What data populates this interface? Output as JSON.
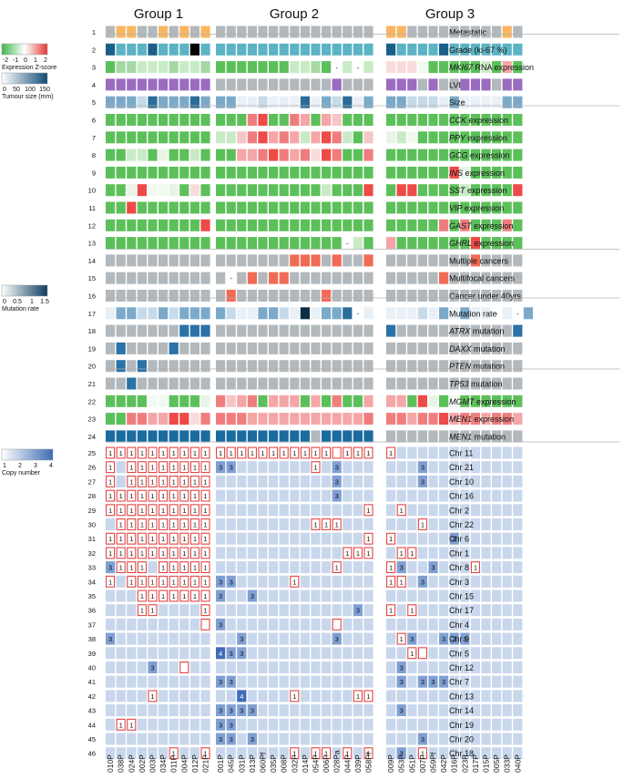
{
  "chart_data": {
    "type": "heatmap",
    "groups": [
      {
        "name": "Group 1",
        "samples": [
          "010P",
          "038P",
          "024P",
          "002P",
          "003P",
          "034P",
          "011P",
          "004P",
          "012P",
          "021P"
        ]
      },
      {
        "name": "Group 2",
        "samples": [
          "001P",
          "045P",
          "031P",
          "013P",
          "060Pf",
          "035P",
          "008P",
          "032P",
          "014P",
          "054P",
          "006P",
          "028Pa",
          "044P",
          "039P",
          "058Pf"
        ]
      },
      {
        "name": "Group 3",
        "samples": [
          "009P",
          "053P",
          "051P",
          "007P",
          "059Pf",
          "042P",
          "016P",
          "023P",
          "017P",
          "015P",
          "005P",
          "033P",
          "040P"
        ]
      }
    ],
    "feature_rows": [
      {
        "n": 1,
        "label": "Metastatic",
        "italic_gene": "",
        "colors": {
          "A": "#f9b661",
          "B": "#b2b8bc",
          "K": "#000000"
        },
        "cells": [
          "BAABBABABA",
          "BBBBBBBBBBBBBBB",
          "AABBBBBBBBBAB"
        ]
      },
      {
        "n": 2,
        "label": "Grade (ki-67 %)",
        "italic_gene": "",
        "colors": {
          "A": "#5cb3c4",
          "B": "#1a5f8a",
          "K": "#000000"
        },
        "cells": [
          "BAAABAAAKA",
          "AAAAAAAAAAAAAAA",
          "BAAAABAAAAAAA"
        ]
      },
      {
        "n": 3,
        "label": "RNA expression",
        "italic_gene": "MKI67",
        "colors": {},
        "cells": [
          "bCCaaaCaaC",
          "bbbbbbbaaCb-a-a",
          "hhhjbbbbbabeb"
        ]
      },
      {
        "n": 4,
        "label": "LVI",
        "italic_gene": "",
        "colors": {
          "A": "#9b6bc0",
          "B": "#b2b8bc"
        },
        "cells": [
          "AAAAAAAAAA",
          "BBBBBBBBBBBABBB",
          "AAABABBAAABAA"
        ]
      },
      {
        "n": 5,
        "label": "Size",
        "italic_gene": "",
        "colors": {
          "A": "#c6dbea",
          "B": "#7ba9c9",
          "C": "#2c6c97",
          "D": "#e9f0f6"
        },
        "cells": [
          "BBBACBBBCB",
          "BBDDADDDCDBACDB",
          "BBAAADBDDDDBB"
        ]
      },
      {
        "n": 6,
        "label": "expression",
        "italic_gene": "CCK",
        "colors": {},
        "cells": [
          "bbbbbbbbbb",
          "bbbfgbbfebedbbb",
          "bbbbbbbbbbbbb"
        ]
      },
      {
        "n": 7,
        "label": "expression",
        "italic_gene": "PPY",
        "colors": {},
        "cells": [
          "bbbbbbbbbb",
          "aadfgefeaegfabd",
          "cajbbbbbbbbbb"
        ]
      },
      {
        "n": 8,
        "label": "expression",
        "italic_gene": "GCG",
        "colors": {},
        "cells": [
          "bbaabcbbab",
          "bbeefgfefhgfbbf",
          "bbbbbbbbbbbbb"
        ]
      },
      {
        "n": 9,
        "label": "expression",
        "italic_gene": "INS",
        "colors": {},
        "cells": [
          "bbbbbbbbbb",
          "bbbbbbbbbbbbbbb",
          "bbbbbbgcbbbbb"
        ]
      },
      {
        "n": 10,
        "label": "expression",
        "italic_gene": "SST",
        "colors": {},
        "cells": [
          "bbcgjjcbhb",
          "bbbbbbbbbbabbbg",
          "bggbbbbabbbbg"
        ]
      },
      {
        "n": 11,
        "label": "expression",
        "italic_gene": "VIP",
        "colors": {},
        "cells": [
          "bbgbbbbbbb",
          "bbbbbbbbbbbbbbb",
          "bbbbbbbbbbbbb"
        ]
      },
      {
        "n": 12,
        "label": "expression",
        "italic_gene": "GAST",
        "colors": {},
        "cells": [
          "bbbbbbbbbg",
          "bbbbbbbbbbbbbbb",
          "bbbbbfbfbbbfb"
        ]
      },
      {
        "n": 13,
        "label": "expression",
        "italic_gene": "GHRL",
        "colors": {},
        "cells": [
          "bbbbbbbbbb",
          "bbbbbbbbbbbb-ab",
          "ebbbbbbbgbbbb"
        ]
      },
      {
        "n": 14,
        "label": "Multiple cancers",
        "italic_gene": "",
        "colors": {
          "A": "#f06b55",
          "B": "#b2b8bc"
        },
        "cells": [
          "BBBBBBBBBB",
          "BBBBBBBAAABABBA",
          "BBBBBBBBABBBB"
        ]
      },
      {
        "n": 15,
        "label": "Multifocal cancers",
        "italic_gene": "",
        "colors": {
          "A": "#f06b55",
          "B": "#b2b8bc"
        },
        "cells": [
          "BBBBBBBBBB",
          "B-BABAABBBBBBBB",
          "BBBBBABBBBBBB"
        ]
      },
      {
        "n": 16,
        "label": "Cancer under 40yrs",
        "italic_gene": "",
        "colors": {
          "A": "#f06b55",
          "B": "#b2b8bc"
        },
        "cells": [
          "BBBBBBBBBB",
          "BABBBBBBBBABBBB",
          "BBBBBBBBBBBBB"
        ]
      },
      {
        "n": 17,
        "label": "Mutation rate",
        "italic_gene": "",
        "colors": {
          "A": "#c6dbea",
          "B": "#7ba9c9",
          "C": "#2c6c97",
          "D": "#e9f0f6",
          "K": "#0b2d45"
        },
        "cells": [
          "DBBAABABBB",
          "BADDBBADKDBBC-D",
          "DDDADBDBDD-D-B"
        ]
      },
      {
        "n": 18,
        "label": "mutation",
        "italic_gene": "ATRX",
        "colors": {
          "A": "#2a72a8",
          "B": "#b2b8bc"
        },
        "cells": [
          "BBBBBBBAAA",
          "BBBBBBBBBBBBBBB",
          "ABBBBBBBBBBBA"
        ]
      },
      {
        "n": 19,
        "label": "mutation",
        "italic_gene": "DAXX",
        "colors": {
          "A": "#2a72a8",
          "B": "#b2b8bc"
        },
        "cells": [
          "BABBBBABBB",
          "BBBBBBBBBBBBBBB",
          "BBBBBBBBBBBBB"
        ]
      },
      {
        "n": 20,
        "label": "mutation",
        "italic_gene": "PTEN",
        "colors": {
          "A": "#2a72a8",
          "B": "#b2b8bc"
        },
        "cells": [
          "BABABBBBBB",
          "BBBBBBBBBBBBBBB",
          "BBBBBBBBBBBBB"
        ]
      },
      {
        "n": 21,
        "label": "mutation",
        "italic_gene": "TP53",
        "colors": {
          "A": "#2a72a8",
          "B": "#b2b8bc"
        },
        "cells": [
          "BBABBBBBBB",
          "BBBBBBBBBBBBBBB",
          "BBBBBBBBBBBBB"
        ]
      },
      {
        "n": 22,
        "label": "expression",
        "italic_gene": "MGMT",
        "colors": {},
        "cells": [
          "bbbbjjbbbc",
          "fdefbeeebebfbbe",
          "eebgcbjbbbbbb"
        ]
      },
      {
        "n": 23,
        "label": "expression",
        "italic_gene": "MEN1",
        "colors": {},
        "cells": [
          "bbffeegghf",
          "fffeeeeeeeeeeef",
          "ffeffgeffeffe"
        ]
      },
      {
        "n": 24,
        "label": "mutation",
        "italic_gene": "MEN1",
        "colors": {
          "A": "#1a6ba0",
          "B": "#b2b8bc"
        },
        "cells": [
          "AAAAAAAAAA",
          "AAAAAAAAABAAAAA",
          "BBBBBBBBBBBBB"
        ]
      }
    ],
    "expression_palette": {
      "a": "#c9eac6",
      "b": "#5cc05a",
      "c": "#e8f5e6",
      "d": "#f6c6c6",
      "e": "#f5a6a6",
      "f": "#f07d7d",
      "g": "#ee4a47",
      "h": "#f8dcdc",
      "j": "#f2f9f0",
      "C": "#a6d9a2"
    },
    "copy_number_rows": [
      {
        "n": 25,
        "label": "Chr 11",
        "cells": [
          "aaaaaaaaaa",
          "aaaaaaaaaaaxaaa",
          "a............"
        ]
      },
      {
        "n": 26,
        "label": "Chr 21",
        "cells": [
          "a.aaaaaaaa",
          "33.......a.3...",
          "...3........."
        ]
      },
      {
        "n": 27,
        "label": "Chr 10",
        "cells": [
          "a.aaaaaaaa",
          "...........3...",
          "...3........."
        ]
      },
      {
        "n": 28,
        "label": "Chr 16",
        "cells": [
          "aaaaaaaaaa",
          "...........3...",
          "............."
        ]
      },
      {
        "n": 29,
        "label": "Chr 2",
        "cells": [
          "aaaaaaaaaa",
          "..............a",
          ".a..........."
        ]
      },
      {
        "n": 30,
        "label": "Chr 22",
        "cells": [
          ".aaaaaaaaa",
          ".........aaa...",
          "...a........."
        ]
      },
      {
        "n": 31,
        "label": "Chr 6",
        "cells": [
          "aaaaaaaaaa",
          "..............a",
          "a.....3......"
        ]
      },
      {
        "n": 32,
        "label": "Chr 1",
        "cells": [
          "aaaaaaaaaa",
          "............aaa",
          ".aa.........."
        ]
      },
      {
        "n": 33,
        "label": "Chr 8",
        "cells": [
          "3aaa.aaaaa",
          "...........a...",
          "a3..3...a...."
        ]
      },
      {
        "n": 34,
        "label": "Chr 3",
        "cells": [
          "a.aaaaaaaa",
          "33.....a.......",
          "aa.3........."
        ]
      },
      {
        "n": 35,
        "label": "Chr 15",
        "cells": [
          "...aaaaaaa",
          "3..3...........",
          "............."
        ]
      },
      {
        "n": 36,
        "label": "Chr 17",
        "cells": [
          "...aa....a",
          ".............3.",
          "a.a.........."
        ]
      },
      {
        "n": 37,
        "label": "Chr 4",
        "cells": [
          ".........x",
          "3..........x...",
          "............."
        ]
      },
      {
        "n": 38,
        "label": "Chr 9",
        "cells": [
          "3.........",
          "..3........3...",
          ".a3..333....."
        ]
      },
      {
        "n": 39,
        "label": "Chr 5",
        "cells": [
          "..........",
          "433............",
          "..ax........."
        ]
      },
      {
        "n": 40,
        "label": "Chr 12",
        "cells": [
          "....3..x..",
          "...............",
          ".3..........."
        ]
      },
      {
        "n": 41,
        "label": "Chr 7",
        "cells": [
          "..........",
          "33.............",
          ".3.333......."
        ]
      },
      {
        "n": 42,
        "label": "Chr 13",
        "cells": [
          "....a.....",
          "..4....a.....aa",
          "............."
        ]
      },
      {
        "n": 43,
        "label": "Chr 14",
        "cells": [
          "..........",
          "3333...........",
          ".3..........."
        ]
      },
      {
        "n": 44,
        "label": "Chr 19",
        "cells": [
          ".aa.......",
          "33.............",
          "............."
        ]
      },
      {
        "n": 45,
        "label": "Chr 20",
        "cells": [
          "..........",
          "33.3...........",
          "...3........."
        ]
      },
      {
        "n": 46,
        "label": "Chr 18",
        "cells": [
          "......a..a",
          ".......a.aa.a.a",
          ".3.a........."
        ]
      }
    ],
    "copy_palette": {
      "base": "#c9d7ec",
      "3": "#7f9fd3",
      "4": "#3f6bb7",
      "outline": "#e53935"
    },
    "legends": {
      "expression": {
        "title": "Expression Z-score",
        "ticks": [
          "-2",
          "-1",
          "0",
          "1",
          "2"
        ]
      },
      "tumour_size": {
        "title": "Tumour size (mm)",
        "ticks": [
          "0",
          "50",
          "100",
          "150"
        ]
      },
      "mutation_rate": {
        "title": "Mutation rate",
        "ticks": [
          "0",
          "0.5",
          "1",
          "1.5"
        ]
      },
      "copy_number": {
        "title": "Copy number",
        "ticks": [
          "1",
          "2",
          "3",
          "4"
        ]
      }
    }
  }
}
